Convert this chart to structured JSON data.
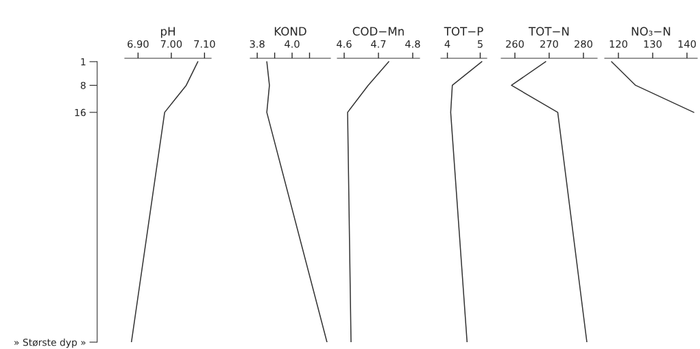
{
  "chart_data": [
    {
      "type": "line",
      "title": "pH",
      "ylim": [
        84,
        0
      ],
      "yticks": [
        1,
        8,
        16,
        {
          "value": 84,
          "label": "» Største dyp »"
        }
      ],
      "xlim": [
        6.86,
        7.12
      ],
      "xticks": [
        {
          "value": 6.9,
          "label": "6.90"
        },
        {
          "value": 7.0,
          "label": "7.00"
        },
        {
          "value": 7.1,
          "label": "7.10"
        }
      ],
      "grid": false,
      "series": [
        {
          "color": "#333333",
          "x": [
            7.08,
            7.045,
            6.98,
            6.88
          ],
          "values": [
            1,
            8,
            16,
            84
          ]
        }
      ]
    },
    {
      "type": "line",
      "title": "KOND",
      "ylim": [
        84,
        0
      ],
      "xlim": [
        3.76,
        4.22
      ],
      "xticks": [
        3.8,
        {
          "value": 3.9,
          "label": null
        },
        {
          "value": 4.0,
          "label": "4.0"
        },
        {
          "value": 4.1,
          "label": null
        }
      ],
      "tick_labels": "x",
      "grid": false,
      "series": [
        {
          "color": "#333333",
          "x": [
            3.855,
            3.87,
            3.855,
            4.2
          ],
          "values": [
            1,
            8,
            16,
            84
          ]
        }
      ]
    },
    {
      "type": "line",
      "title": "COD−Mn",
      "ylim": [
        84,
        0
      ],
      "xlim": [
        4.58,
        4.82
      ],
      "xticks": [
        4.6,
        4.7,
        4.8
      ],
      "tick_labels": "x",
      "grid": false,
      "series": [
        {
          "color": "#333333",
          "x": [
            4.73,
            4.67,
            4.61,
            4.62
          ],
          "values": [
            1,
            8,
            16,
            84
          ]
        }
      ]
    },
    {
      "type": "line",
      "title": "TOT−P",
      "ylim": [
        84,
        0
      ],
      "xlim": [
        3.8,
        5.2
      ],
      "xticks": [
        4,
        5
      ],
      "tick_labels": "x",
      "grid": false,
      "series": [
        {
          "color": "#333333",
          "x": [
            5.05,
            4.15,
            4.1,
            4.6
          ],
          "values": [
            1,
            8,
            16,
            84
          ]
        }
      ]
    },
    {
      "type": "line",
      "title": "TOT−N",
      "ylim": [
        84,
        0
      ],
      "xlim": [
        256,
        284
      ],
      "xticks": [
        260,
        270,
        280
      ],
      "tick_labels": "x",
      "grid": false,
      "series": [
        {
          "color": "#333333",
          "x": [
            269,
            259,
            272.5,
            281
          ],
          "values": [
            1,
            8,
            16,
            84
          ]
        }
      ]
    },
    {
      "type": "line",
      "title": "NO₃−N",
      "ylim": [
        84,
        0
      ],
      "xlim": [
        116,
        143
      ],
      "xticks": [
        120,
        130,
        140
      ],
      "tick_labels": "x",
      "grid": false,
      "series": [
        {
          "color": "#333333",
          "x": [
            118,
            125,
            142
          ],
          "values": [
            1,
            8,
            16
          ]
        }
      ]
    }
  ]
}
